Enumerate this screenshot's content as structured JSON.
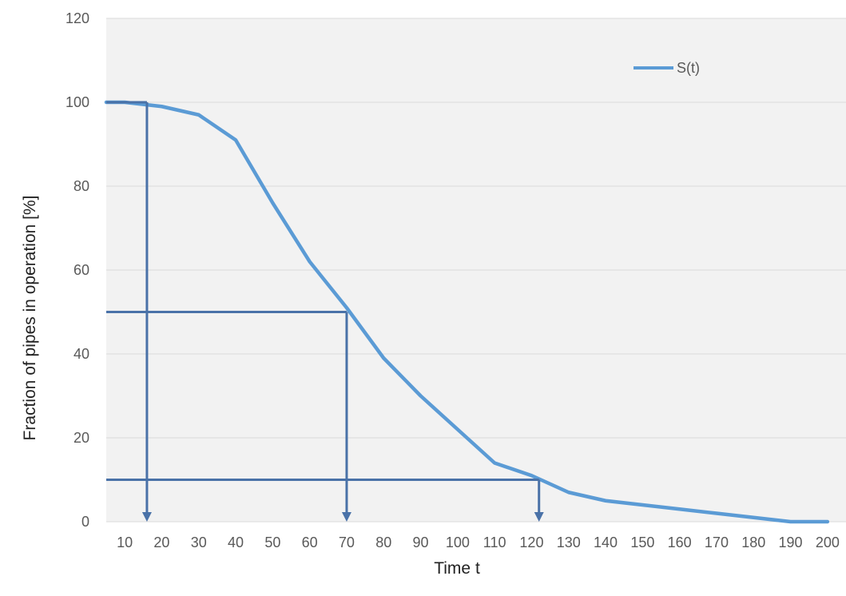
{
  "chart_data": {
    "type": "line",
    "xlabel": "Time t",
    "ylabel": "Fraction of pipes in operation [%]",
    "x_ticks": [
      10,
      20,
      30,
      40,
      50,
      60,
      70,
      80,
      90,
      100,
      110,
      120,
      130,
      140,
      150,
      160,
      170,
      180,
      190,
      200
    ],
    "y_ticks": [
      0,
      20,
      40,
      60,
      80,
      100,
      120
    ],
    "xlim": [
      5,
      205
    ],
    "ylim": [
      0,
      120
    ],
    "grid": "horizontal",
    "legend": "top-right",
    "series": [
      {
        "name": "S(t)",
        "color": "#5b9bd5",
        "x": [
          5,
          10,
          20,
          30,
          40,
          50,
          60,
          70,
          80,
          90,
          100,
          110,
          120,
          130,
          140,
          150,
          160,
          170,
          180,
          190,
          200
        ],
        "y": [
          100,
          100,
          99,
          97,
          91,
          76,
          62,
          51,
          39,
          30,
          22,
          14,
          11,
          7,
          5,
          4,
          3,
          2,
          1,
          0,
          0
        ]
      }
    ],
    "annotations": [
      {
        "y": 100,
        "x": 16,
        "color": "#4a72a8"
      },
      {
        "y": 50,
        "x": 70,
        "color": "#4a72a8"
      },
      {
        "y": 10,
        "x": 122,
        "color": "#4a72a8"
      }
    ]
  }
}
